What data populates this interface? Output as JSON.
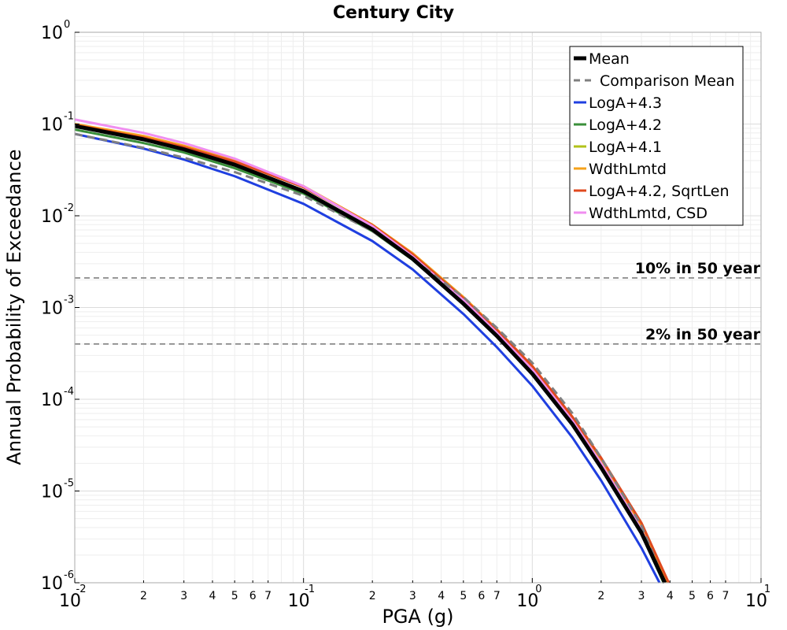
{
  "chart_data": {
    "type": "line",
    "title": "Century City",
    "xlabel": "PGA (g)",
    "ylabel": "Annual Probability of Exceedance",
    "x_scale": "log",
    "y_scale": "log",
    "xlim": [
      0.01,
      10
    ],
    "ylim": [
      1e-06,
      1
    ],
    "grid": true,
    "legend_position": "top-right",
    "x_major_ticks": [
      {
        "value": 0.01,
        "base": "10",
        "exp": "-2"
      },
      {
        "value": 0.1,
        "base": "10",
        "exp": "-1"
      },
      {
        "value": 1,
        "base": "10",
        "exp": "0"
      },
      {
        "value": 10,
        "base": "10",
        "exp": "1"
      }
    ],
    "x_minor_ticks": [
      {
        "value": 0.02,
        "label": "2"
      },
      {
        "value": 0.03,
        "label": "3"
      },
      {
        "value": 0.04,
        "label": "4"
      },
      {
        "value": 0.05,
        "label": "5"
      },
      {
        "value": 0.06,
        "label": "6"
      },
      {
        "value": 0.07,
        "label": "7"
      },
      {
        "value": 0.2,
        "label": "2"
      },
      {
        "value": 0.3,
        "label": "3"
      },
      {
        "value": 0.4,
        "label": "4"
      },
      {
        "value": 0.5,
        "label": "5"
      },
      {
        "value": 0.6,
        "label": "6"
      },
      {
        "value": 0.7,
        "label": "7"
      },
      {
        "value": 2,
        "label": "2"
      },
      {
        "value": 3,
        "label": "3"
      },
      {
        "value": 4,
        "label": "4"
      },
      {
        "value": 5,
        "label": "5"
      },
      {
        "value": 6,
        "label": "6"
      },
      {
        "value": 7,
        "label": "7"
      }
    ],
    "y_major_ticks": [
      {
        "value": 1,
        "base": "10",
        "exp": "0"
      },
      {
        "value": 0.1,
        "base": "10",
        "exp": "-1"
      },
      {
        "value": 0.01,
        "base": "10",
        "exp": "-2"
      },
      {
        "value": 0.001,
        "base": "10",
        "exp": "-3"
      },
      {
        "value": 0.0001,
        "base": "10",
        "exp": "-4"
      },
      {
        "value": 1e-05,
        "base": "10",
        "exp": "-5"
      },
      {
        "value": 1e-06,
        "base": "10",
        "exp": "-6"
      }
    ],
    "reference_lines": [
      {
        "label": "10% in 50 year",
        "y": 0.0021,
        "color": "#808080"
      },
      {
        "label": "2% in 50 year",
        "y": 0.0004,
        "color": "#808080"
      }
    ],
    "series": [
      {
        "name": "LogA+4.3",
        "color": "#1f3fe0",
        "dash": "solid",
        "width": 3,
        "x": [
          0.01,
          0.02,
          0.03,
          0.05,
          0.1,
          0.2,
          0.3,
          0.5,
          0.7,
          1.0,
          1.5,
          2.0,
          3.0,
          3.6
        ],
        "y": [
          0.078,
          0.054,
          0.041,
          0.027,
          0.0135,
          0.0053,
          0.0026,
          0.00085,
          0.00037,
          0.00014,
          3.8e-05,
          1.3e-05,
          2.4e-06,
          1e-06
        ]
      },
      {
        "name": "LogA+4.2",
        "color": "#3a8f3a",
        "dash": "solid",
        "width": 3,
        "x": [
          0.01,
          0.02,
          0.03,
          0.05,
          0.1,
          0.2,
          0.3,
          0.5,
          0.7,
          1.0,
          1.5,
          2.0,
          3.0,
          3.75
        ],
        "y": [
          0.087,
          0.062,
          0.049,
          0.033,
          0.0175,
          0.0068,
          0.0033,
          0.0011,
          0.00049,
          0.00019,
          5.2e-05,
          1.8e-05,
          3.4e-06,
          1e-06
        ]
      },
      {
        "name": "LogA+4.1",
        "color": "#b2c21a",
        "dash": "solid",
        "width": 3,
        "x": [
          0.01,
          0.02,
          0.03,
          0.05,
          0.1,
          0.2,
          0.3,
          0.5,
          0.7,
          1.0,
          1.5,
          2.0,
          3.0,
          3.85
        ],
        "y": [
          0.099,
          0.072,
          0.057,
          0.039,
          0.0205,
          0.0079,
          0.0038,
          0.00125,
          0.00056,
          0.00022,
          6e-05,
          2.1e-05,
          4e-06,
          1e-06
        ]
      },
      {
        "name": "WdthLmtd",
        "color": "#f5a21b",
        "dash": "solid",
        "width": 3,
        "x": [
          0.01,
          0.02,
          0.03,
          0.05,
          0.1,
          0.2,
          0.3,
          0.5,
          0.7,
          1.0,
          1.5,
          2.0,
          3.0,
          3.9
        ],
        "y": [
          0.1,
          0.074,
          0.058,
          0.04,
          0.021,
          0.008,
          0.0039,
          0.0013,
          0.00058,
          0.00023,
          6.3e-05,
          2.2e-05,
          4.3e-06,
          1e-06
        ]
      },
      {
        "name": "LogA+4.2, SqrtLen",
        "color": "#e04a1f",
        "dash": "solid",
        "width": 3,
        "x": [
          0.01,
          0.02,
          0.03,
          0.05,
          0.1,
          0.2,
          0.3,
          0.5,
          0.7,
          1.0,
          1.5,
          2.0,
          3.0,
          3.95
        ],
        "y": [
          0.098,
          0.071,
          0.056,
          0.039,
          0.0205,
          0.0079,
          0.0038,
          0.00126,
          0.00057,
          0.00023,
          6.4e-05,
          2.3e-05,
          4.5e-06,
          1e-06
        ]
      },
      {
        "name": "WdthLmtd, CSD",
        "color": "#f08ef0",
        "dash": "solid",
        "width": 3,
        "x": [
          0.01,
          0.02,
          0.03,
          0.05,
          0.1,
          0.2,
          0.3,
          0.5,
          0.7,
          1.0,
          1.5,
          2.0,
          3.0,
          3.8
        ],
        "y": [
          0.112,
          0.08,
          0.062,
          0.042,
          0.021,
          0.0077,
          0.0036,
          0.0012,
          0.00053,
          0.00021,
          5.8e-05,
          2e-05,
          3.8e-06,
          1e-06
        ]
      },
      {
        "name": "Comparison Mean",
        "color": "#808080",
        "dash": "dashed",
        "width": 3,
        "x": [
          0.01,
          0.02,
          0.03,
          0.05,
          0.1,
          0.2,
          0.3,
          0.5,
          0.7,
          1.0,
          1.5,
          2.0,
          3.0,
          3.8
        ],
        "y": [
          0.078,
          0.055,
          0.043,
          0.03,
          0.0165,
          0.0068,
          0.0034,
          0.0013,
          0.0006,
          0.00025,
          7e-05,
          2.3e-05,
          4.2e-06,
          1e-06
        ]
      },
      {
        "name": "Mean",
        "color": "#000000",
        "dash": "solid",
        "width": 5,
        "x": [
          0.01,
          0.02,
          0.03,
          0.05,
          0.1,
          0.2,
          0.3,
          0.5,
          0.7,
          1.0,
          1.5,
          2.0,
          3.0,
          3.8
        ],
        "y": [
          0.095,
          0.068,
          0.053,
          0.036,
          0.0185,
          0.0071,
          0.0034,
          0.0011,
          0.00049,
          0.00019,
          5.3e-05,
          1.8e-05,
          3.5e-06,
          1e-06
        ]
      }
    ],
    "legend_order": [
      "Mean",
      "Comparison Mean",
      "LogA+4.3",
      "LogA+4.2",
      "LogA+4.1",
      "WdthLmtd",
      "LogA+4.2, SqrtLen",
      "WdthLmtd, CSD"
    ]
  }
}
